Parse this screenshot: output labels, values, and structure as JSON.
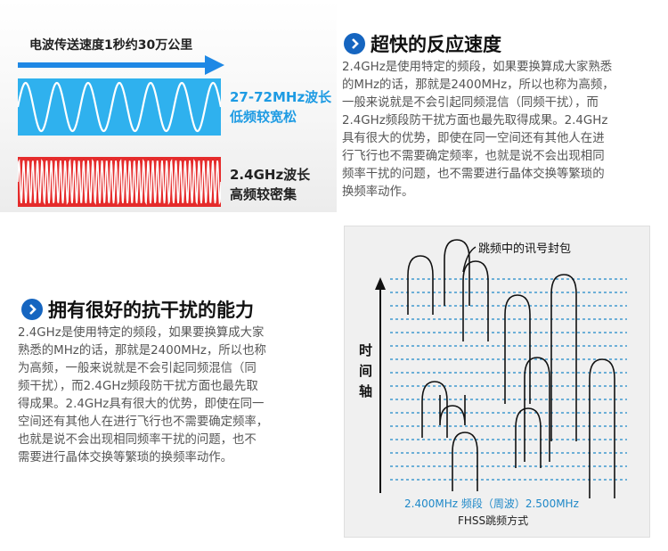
{
  "wave_panel": {
    "speed_caption": "电波传送速度1秒约30万公里",
    "low_freq": {
      "label_line1": "27-72MHz波长",
      "label_line2": "低频较宽松",
      "color": "#1e9be3"
    },
    "high_freq": {
      "label_line1": "2.4GHz波长",
      "label_line2": "高频较密集",
      "color": "#e52b2b"
    },
    "arrow_color": "#1e88e5"
  },
  "section_speed": {
    "title": "超快的反应速度",
    "lines": [
      "2.4GHz是使用特定的频段，如果要换算成大家熟悉",
      "的MHz的话，那就是2400MHz，所以也称为高频，",
      "一般来说就是不会引起同频混信（同频干扰），而",
      "2.4GHz频段防干扰方面也最先取得成果。2.4GHz",
      "具有很大的优势，即使在同一空间还有其他人在进",
      "行飞行也不需要确定频率，也就是说不会出现相同",
      "频率干扰的问题，也不需要进行晶体交换等繁琐的",
      "换频率动作。"
    ]
  },
  "section_interference": {
    "title": "拥有很好的抗干扰的能力",
    "lines": [
      "2.4GHz是使用特定的频段，如果要换算成大家",
      "熟悉的MHz的话，那就是2400MHz，所以也称",
      "为高频，一般来说就是不会引起同频混信（同",
      "频干扰），而2.4GHz频段防干扰方面也最先取",
      "得成果。2.4GHz具有很大的优势，即使在同一",
      "空间还有其他人在进行飞行也不需要确定频率，",
      "也就是说不会出现相同频率干扰的问题，也不",
      "需要进行晶体交换等繁琐的换频率动作。"
    ]
  },
  "fhss_diagram": {
    "packet_label": "跳频中的讯号封包",
    "time_axis_chars": [
      "时",
      "间",
      "轴"
    ],
    "freq_axis_label": "2.400MHz  频段（周波）2.500MHz",
    "caption": "FHSS跳频方式",
    "line_color": "#1e88c8",
    "accent": "#1565c0"
  }
}
